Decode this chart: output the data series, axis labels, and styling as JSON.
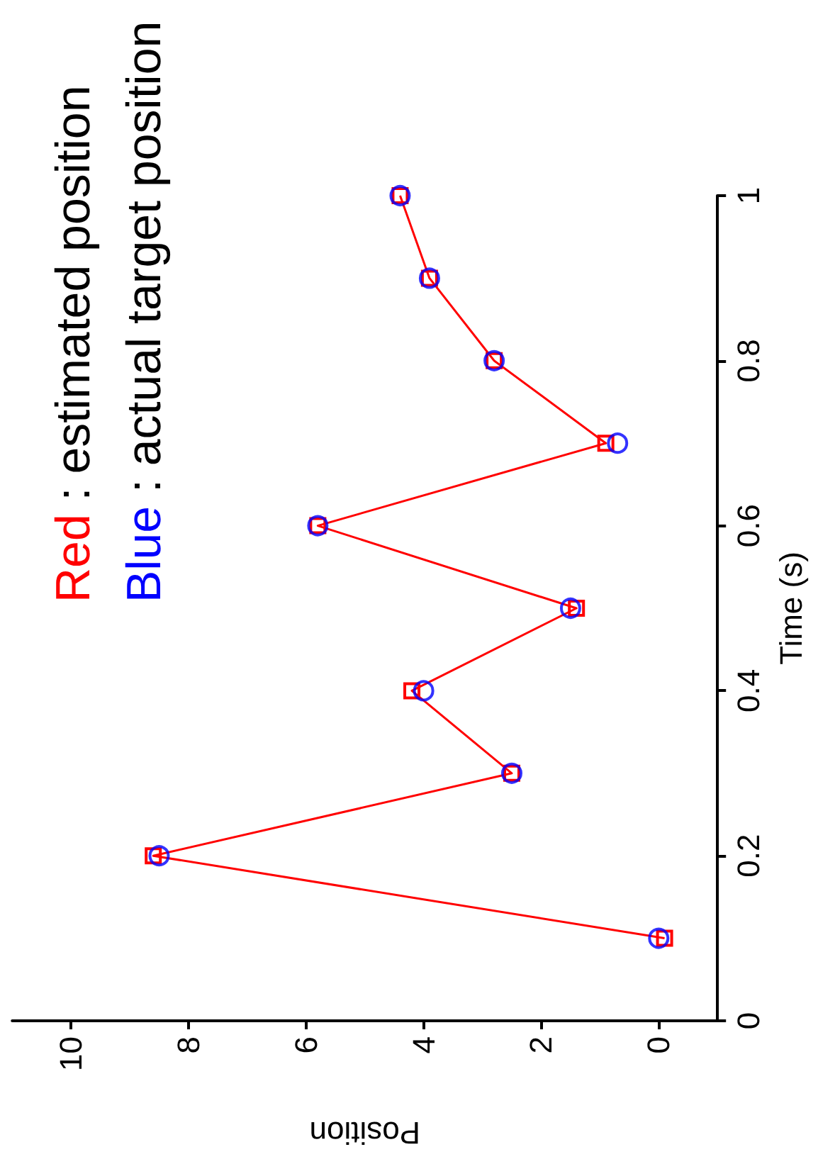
{
  "chart_data": {
    "type": "line",
    "xlabel": "Position",
    "y2label": "Time (s)",
    "series": [
      {
        "color": "#ff0000",
        "marker": "square",
        "axis": "y2",
        "x": [
          -0.1,
          8.6,
          2.5,
          4.2,
          1.4,
          5.8,
          0.9,
          2.8,
          3.9,
          4.4
        ],
        "values": [
          0.1,
          0.2,
          0.3,
          0.4,
          0.5,
          0.6,
          0.7,
          0.8,
          0.9,
          1.0
        ]
      },
      {
        "type": "scatter",
        "color": "#0000ff",
        "marker": "circle",
        "axis": "y2",
        "x": [
          0.0,
          8.5,
          2.5,
          4.0,
          1.5,
          5.8,
          0.7,
          2.8,
          3.9,
          4.4
        ],
        "values": [
          0.1,
          0.2,
          0.3,
          0.4,
          0.5,
          0.6,
          0.7,
          0.8,
          0.9,
          1.0
        ]
      }
    ],
    "annotations": [
      "Red : estimated position",
      "Blue : actual target position"
    ],
    "xlim": [
      11,
      -1
    ],
    "xticks": [
      10,
      8,
      6,
      4,
      2,
      0
    ],
    "y2lim": [
      0,
      1
    ],
    "y2ticks": [
      0,
      0.2,
      0.4,
      0.6,
      0.8,
      1
    ],
    "grid": false
  }
}
